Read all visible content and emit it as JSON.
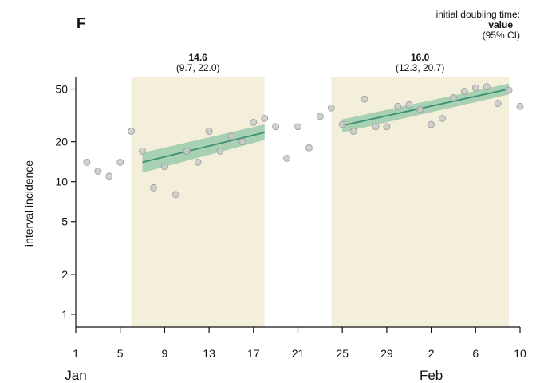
{
  "chart_data": {
    "type": "scatter",
    "panel_label": "F",
    "ylabel": "interval incidence",
    "y_scale": "log",
    "ylim": [
      0.8,
      62
    ],
    "y_ticks": [
      1,
      2,
      5,
      10,
      20,
      50
    ],
    "xlim": [
      1,
      41
    ],
    "x_ticks": [
      {
        "day": 1,
        "label": "1"
      },
      {
        "day": 5,
        "label": "5"
      },
      {
        "day": 9,
        "label": "9"
      },
      {
        "day": 13,
        "label": "13"
      },
      {
        "day": 17,
        "label": "17"
      },
      {
        "day": 21,
        "label": "21"
      },
      {
        "day": 25,
        "label": "25"
      },
      {
        "day": 29,
        "label": "29"
      },
      {
        "day": 33,
        "label": "2"
      },
      {
        "day": 37,
        "label": "6"
      },
      {
        "day": 41,
        "label": "10"
      }
    ],
    "month_labels": [
      {
        "day": 1,
        "label": "Jan"
      },
      {
        "day": 33,
        "label": "Feb"
      }
    ],
    "legend": {
      "line1": "initial doubling time:",
      "line2": "value",
      "line3": "(95% CI)"
    },
    "points": [
      {
        "x": 2,
        "y": 14
      },
      {
        "x": 3,
        "y": 12
      },
      {
        "x": 4,
        "y": 11
      },
      {
        "x": 5,
        "y": 14
      },
      {
        "x": 6,
        "y": 24
      },
      {
        "x": 7,
        "y": 17
      },
      {
        "x": 8,
        "y": 9
      },
      {
        "x": 9,
        "y": 13
      },
      {
        "x": 10,
        "y": 8
      },
      {
        "x": 11,
        "y": 17
      },
      {
        "x": 12,
        "y": 14
      },
      {
        "x": 13,
        "y": 24
      },
      {
        "x": 14,
        "y": 17
      },
      {
        "x": 15,
        "y": 22
      },
      {
        "x": 16,
        "y": 20
      },
      {
        "x": 17,
        "y": 28
      },
      {
        "x": 18,
        "y": 30
      },
      {
        "x": 19,
        "y": 26
      },
      {
        "x": 20,
        "y": 15
      },
      {
        "x": 21,
        "y": 26
      },
      {
        "x": 22,
        "y": 18
      },
      {
        "x": 23,
        "y": 31
      },
      {
        "x": 24,
        "y": 36
      },
      {
        "x": 25,
        "y": 27
      },
      {
        "x": 26,
        "y": 24
      },
      {
        "x": 27,
        "y": 42
      },
      {
        "x": 28,
        "y": 26
      },
      {
        "x": 29,
        "y": 26
      },
      {
        "x": 30,
        "y": 37
      },
      {
        "x": 31,
        "y": 38
      },
      {
        "x": 32,
        "y": 35
      },
      {
        "x": 33,
        "y": 27
      },
      {
        "x": 34,
        "y": 30
      },
      {
        "x": 35,
        "y": 43
      },
      {
        "x": 36,
        "y": 48
      },
      {
        "x": 37,
        "y": 51
      },
      {
        "x": 38,
        "y": 52
      },
      {
        "x": 39,
        "y": 39
      },
      {
        "x": 40,
        "y": 49
      },
      {
        "x": 41,
        "y": 37
      }
    ],
    "windows": [
      {
        "x_start": 6,
        "x_end": 18,
        "value_label": "14.6",
        "ci_label": "(9.7, 22.0)",
        "fit": {
          "x0": 7,
          "y0": 14,
          "x1": 18,
          "y1": 23.5
        },
        "band_lower": {
          "y0": 11.7,
          "y1": 20.6
        },
        "band_upper": {
          "y0": 16.5,
          "y1": 27.0
        }
      },
      {
        "x_start": 24,
        "x_end": 40,
        "value_label": "16.0",
        "ci_label": "(12.3, 20.7)",
        "fit": {
          "x0": 25,
          "y0": 26.5,
          "x1": 40,
          "y1": 50
        },
        "band_lower": {
          "y0": 23.5,
          "y1": 45.5
        },
        "band_upper": {
          "y0": 29.5,
          "y1": 55.0
        }
      }
    ],
    "colors": {
      "window_fill": "#f4efda",
      "fit_line": "#3a9070",
      "band_fill": "#7fbf9c",
      "point_fill": "#c9c9c9",
      "point_stroke": "#9a9a9a",
      "axis": "#111111"
    }
  }
}
